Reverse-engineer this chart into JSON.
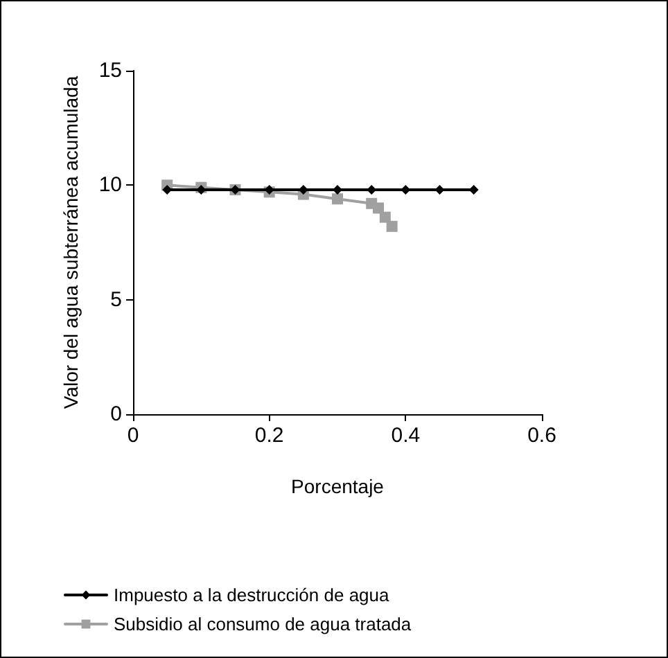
{
  "chart_data": {
    "type": "line",
    "xlabel": "Porcentaje",
    "ylabel": "Valor del agua subterránea acumulada",
    "xlim": [
      0,
      0.6
    ],
    "xticks": [
      0,
      0.2,
      0.4,
      0.6
    ],
    "ylim": [
      0,
      15
    ],
    "yticks": [
      0,
      5,
      10,
      15
    ],
    "grid": false,
    "legend": "bottom",
    "series": [
      {
        "name": "Impuesto a la destrucción de agua",
        "color": "#000000",
        "marker": "diamond",
        "x": [
          0.05,
          0.1,
          0.15,
          0.2,
          0.25,
          0.3,
          0.35,
          0.4,
          0.45,
          0.5
        ],
        "values": [
          9.8,
          9.8,
          9.8,
          9.8,
          9.8,
          9.8,
          9.8,
          9.8,
          9.8,
          9.8
        ]
      },
      {
        "name": "Subsidio al consumo de agua tratada",
        "color": "#a0a0a0",
        "marker": "square",
        "x": [
          0.05,
          0.1,
          0.15,
          0.2,
          0.25,
          0.3,
          0.35,
          0.36,
          0.37,
          0.38
        ],
        "values": [
          10,
          9.9,
          9.8,
          9.7,
          9.6,
          9.4,
          9.2,
          9.0,
          8.6,
          8.2
        ]
      }
    ]
  }
}
